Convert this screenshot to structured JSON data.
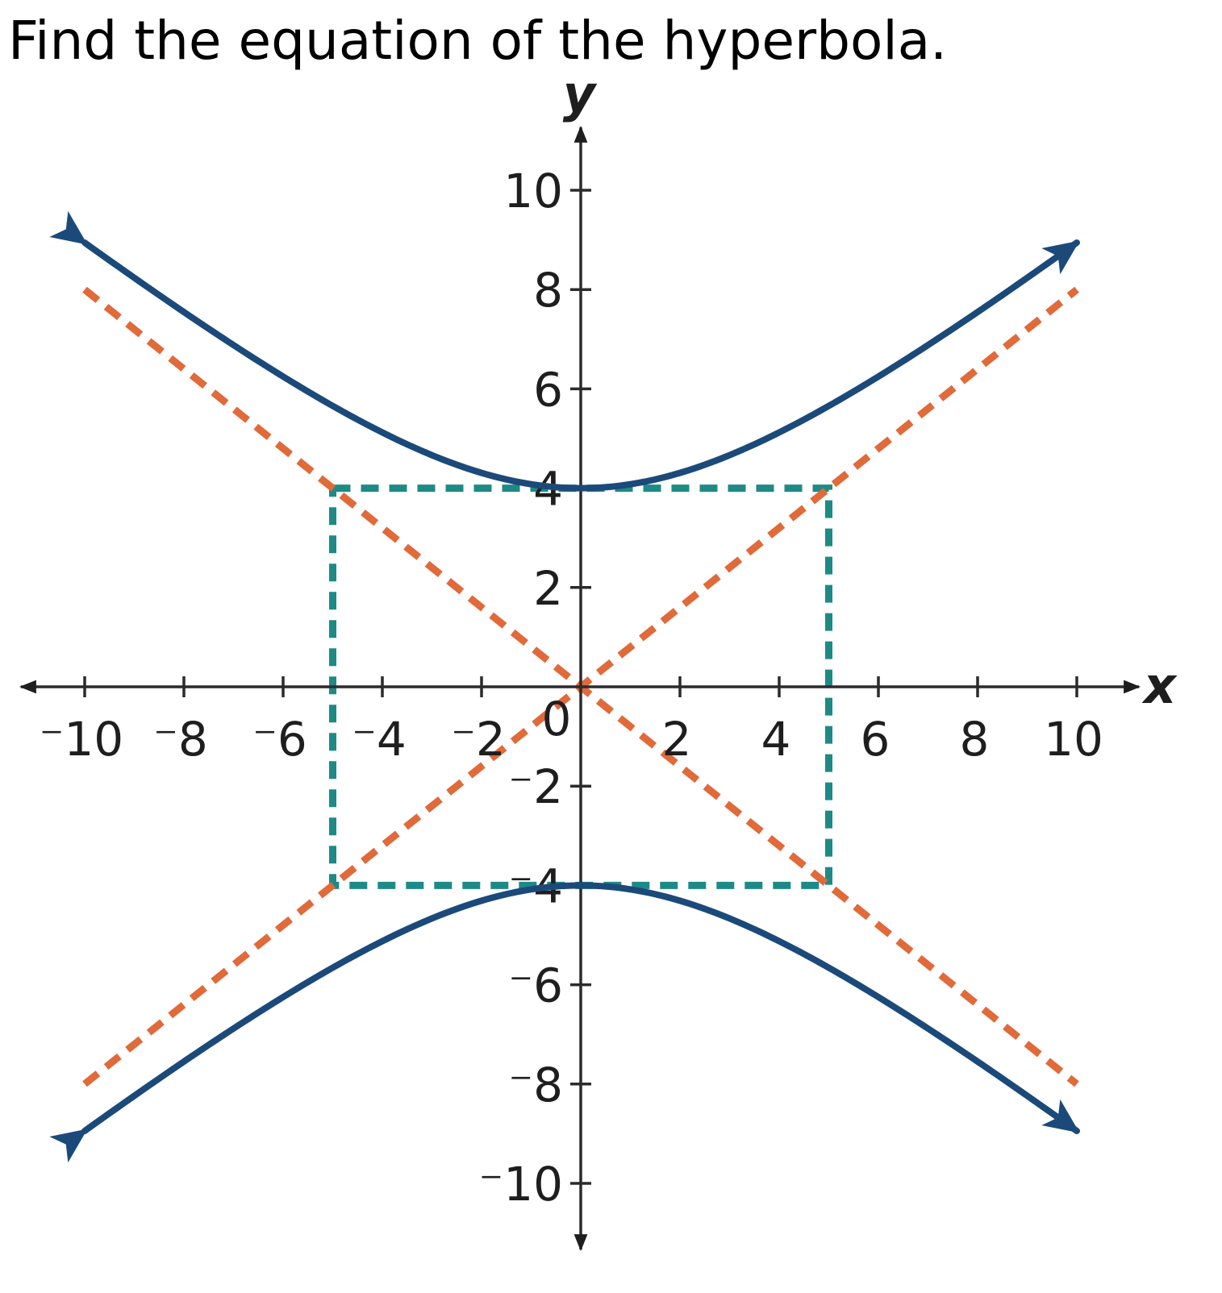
{
  "question": "Find the equation of the hyperbola.",
  "colors": {
    "axes": "#2b2b2b",
    "hyperbola": "#1b4a7a",
    "asymptote": "#e06a3a",
    "box": "#1e8a86"
  },
  "chart_data": {
    "type": "graph",
    "x_axis": {
      "label": "x",
      "min": -10,
      "max": 10,
      "step": 2
    },
    "y_axis": {
      "label": "y",
      "min": -10,
      "max": 10,
      "step": 2
    },
    "x_ticks": [
      {
        "value": -10,
        "label": "⁻10"
      },
      {
        "value": -8,
        "label": "⁻8"
      },
      {
        "value": -6,
        "label": "⁻6"
      },
      {
        "value": -4,
        "label": "⁻4"
      },
      {
        "value": -2,
        "label": "⁻2"
      },
      {
        "value": 0,
        "label": "0"
      },
      {
        "value": 2,
        "label": "2"
      },
      {
        "value": 4,
        "label": "4"
      },
      {
        "value": 6,
        "label": "6"
      },
      {
        "value": 8,
        "label": "8"
      },
      {
        "value": 10,
        "label": "10"
      }
    ],
    "y_ticks": [
      {
        "value": 10,
        "label": "10"
      },
      {
        "value": 8,
        "label": "8"
      },
      {
        "value": 6,
        "label": "6"
      },
      {
        "value": 4,
        "label": "4"
      },
      {
        "value": 2,
        "label": "2"
      },
      {
        "value": -2,
        "label": "⁻2"
      },
      {
        "value": -4,
        "label": "⁻4"
      },
      {
        "value": -6,
        "label": "⁻6"
      },
      {
        "value": -8,
        "label": "⁻8"
      },
      {
        "value": -10,
        "label": "⁻10"
      }
    ],
    "hyperbola": {
      "a": 4,
      "b": 5,
      "center": [
        0,
        0
      ],
      "transverse_axis": "vertical",
      "x_range": [
        -10,
        10
      ]
    },
    "asymptotes": [
      {
        "slope": 0.8,
        "intercept": 0
      },
      {
        "slope": -0.8,
        "intercept": 0
      }
    ],
    "box": {
      "x_range": [
        -5,
        5
      ],
      "y_range": [
        -4,
        4
      ]
    }
  }
}
